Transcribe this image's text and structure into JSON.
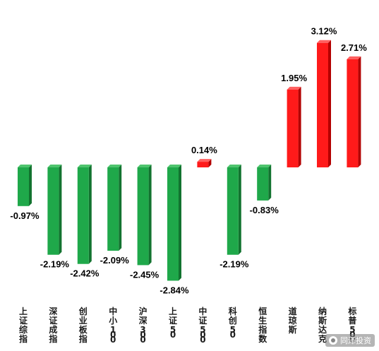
{
  "chart_data": {
    "type": "bar",
    "title": "",
    "xlabel": "",
    "ylabel": "",
    "categories": [
      "上证综指",
      "深证成指",
      "创业板指",
      "中小100",
      "沪深300",
      "上证50",
      "中证500",
      "科创50",
      "恒生指数",
      "道琼斯",
      "纳斯达克",
      "标普500"
    ],
    "values": [
      -0.97,
      -2.19,
      -2.42,
      -2.09,
      -2.45,
      -2.84,
      0.14,
      -2.19,
      -0.83,
      1.95,
      3.12,
      2.71
    ],
    "value_labels": [
      "-0.97%",
      "-2.19%",
      "-2.42%",
      "-2.09%",
      "-2.45%",
      "-2.84%",
      "0.14%",
      "-2.19%",
      "-0.83%",
      "1.95%",
      "3.12%",
      "2.71%"
    ],
    "ylim": [
      -2.9,
      3.3
    ],
    "grid": false,
    "legend": "none",
    "colors": {
      "negative": "#1fa84a",
      "negative_side": "#12732f",
      "negative_top": "#4fc46e",
      "positive": "#ff1a1a",
      "positive_side": "#b30000",
      "positive_top": "#ff6060"
    }
  },
  "watermark": {
    "icon": "wechat-icon",
    "text": "同泽投资"
  }
}
